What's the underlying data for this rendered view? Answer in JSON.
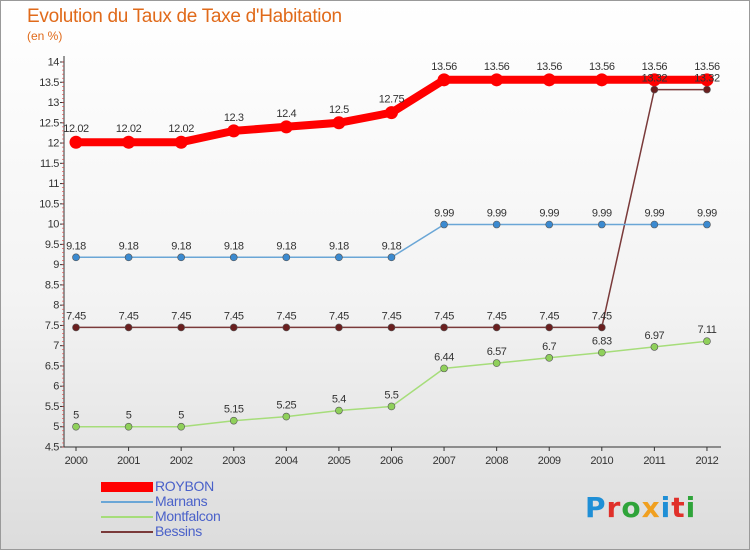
{
  "chart_title": "Evolution du Taux de Taxe d'Habitation",
  "chart_unit": "(en %)",
  "logo_text": "Proxiti",
  "logo_colors": [
    "#1f8fd6",
    "#e0302a",
    "#2fa43a",
    "#f0a020",
    "#1f8fd6",
    "#e0302a",
    "#2fa43a"
  ],
  "chart_data": {
    "type": "line",
    "x": [
      "2000",
      "2001",
      "2002",
      "2003",
      "2004",
      "2005",
      "2006",
      "2007",
      "2008",
      "2009",
      "2010",
      "2011",
      "2012"
    ],
    "ylim": [
      4.5,
      14
    ],
    "yticks": [
      "4.5",
      "5",
      "5.5",
      "6",
      "6.5",
      "7",
      "7.5",
      "8",
      "8.5",
      "9",
      "9.5",
      "10",
      "10.5",
      "11",
      "11.5",
      "12",
      "12.5",
      "13",
      "13.5",
      "14"
    ],
    "grid": false,
    "legend_position": "bottom-left",
    "series": [
      {
        "name": "ROYBON",
        "color": "#ff0000",
        "point_color": "#ff0000",
        "width": 8,
        "marker": 6.5,
        "values": [
          12.02,
          12.02,
          12.02,
          12.3,
          12.4,
          12.5,
          12.75,
          13.56,
          13.56,
          13.56,
          13.56,
          13.56,
          13.56
        ],
        "labels": [
          "12.02",
          "12.02",
          "12.02",
          "12.3",
          "12.4",
          "12.5",
          "12.75",
          "13.56",
          "13.56",
          "13.56",
          "13.56",
          "13.56",
          "13.56"
        ]
      },
      {
        "name": "Marnans",
        "color": "#6aa6d6",
        "point_color": "#3b8ad0",
        "width": 1.5,
        "marker": 3.5,
        "values": [
          9.18,
          9.18,
          9.18,
          9.18,
          9.18,
          9.18,
          9.18,
          9.99,
          9.99,
          9.99,
          9.99,
          9.99,
          9.99
        ],
        "labels": [
          "9.18",
          "9.18",
          "9.18",
          "9.18",
          "9.18",
          "9.18",
          "9.18",
          "9.99",
          "9.99",
          "9.99",
          "9.99",
          "9.99",
          "9.99"
        ]
      },
      {
        "name": "Montfalcon",
        "color": "#a6dd7a",
        "point_color": "#8fd05a",
        "width": 1.5,
        "marker": 3.5,
        "values": [
          5,
          5,
          5,
          5.15,
          5.25,
          5.4,
          5.5,
          6.44,
          6.57,
          6.7,
          6.83,
          6.97,
          7.11
        ],
        "labels": [
          "5",
          "5",
          "5",
          "5.15",
          "5.25",
          "5.4",
          "5.5",
          "6.44",
          "6.57",
          "6.7",
          "6.83",
          "6.97",
          "7.11"
        ]
      },
      {
        "name": "Bessins",
        "color": "#7a3a3a",
        "point_color": "#6a1f1f",
        "width": 1.5,
        "marker": 3.5,
        "values": [
          7.45,
          7.45,
          7.45,
          7.45,
          7.45,
          7.45,
          7.45,
          7.45,
          7.45,
          7.45,
          7.45,
          13.32,
          13.32
        ],
        "labels": [
          "7.45",
          "7.45",
          "7.45",
          "7.45",
          "7.45",
          "7.45",
          "7.45",
          "7.45",
          "7.45",
          "7.45",
          "7.45",
          "13.32",
          "13.32"
        ]
      }
    ]
  }
}
